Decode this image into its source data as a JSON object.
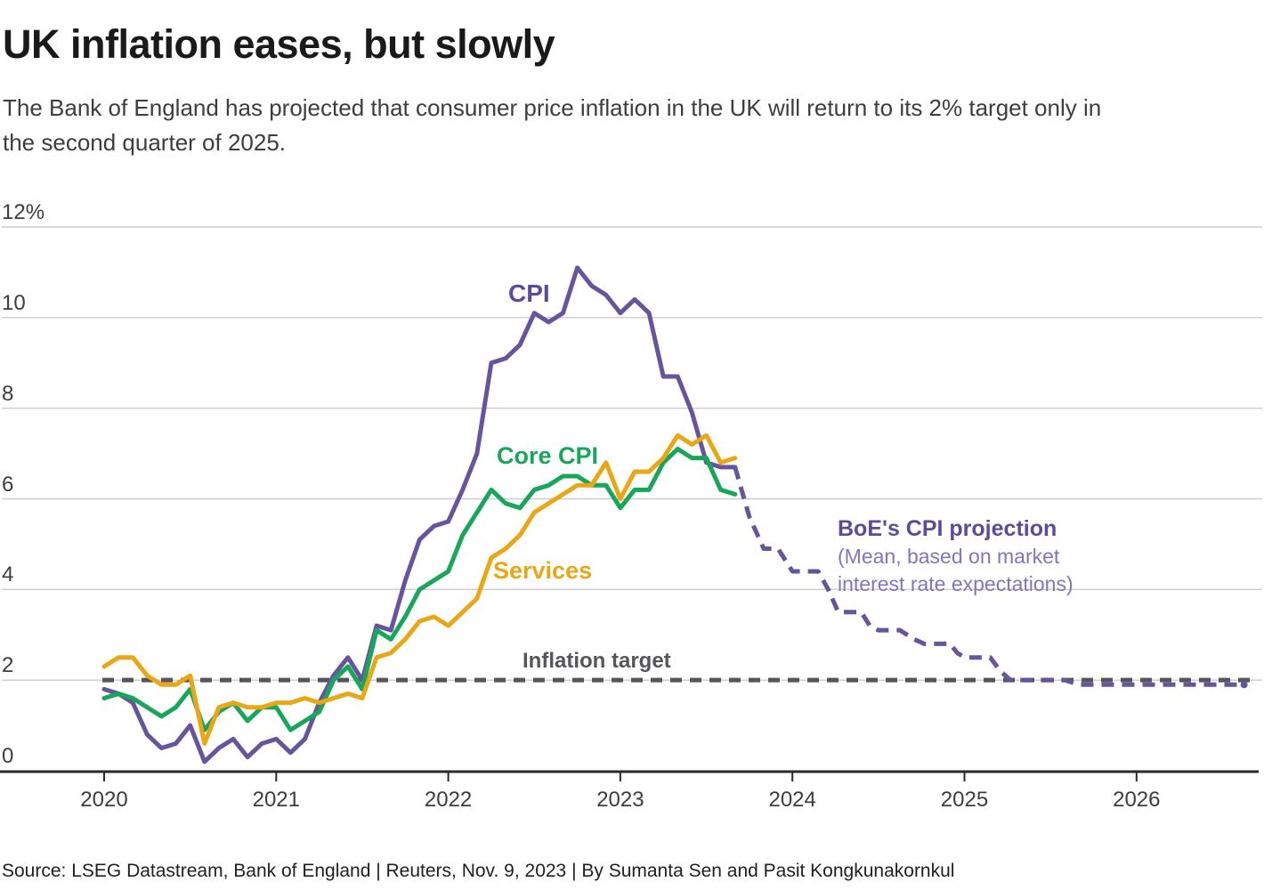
{
  "header": {
    "title": "UK inflation eases, but slowly",
    "subtitle_line1": "The Bank of England has projected that consumer price inflation in the UK will return to its 2% target only in",
    "subtitle_line2": "the second quarter of 2025."
  },
  "annotations": {
    "cpi": "CPI",
    "core_cpi": "Core CPI",
    "services": "Services",
    "inflation_target": "Inflation target",
    "boe_projection_title": "BoE's CPI projection",
    "boe_projection_sub1": "(Mean, based on market",
    "boe_projection_sub2": "interest rate expectations)"
  },
  "footer": {
    "source": "Source: LSEG Datastream, Bank of England | Reuters, Nov. 9, 2023 | By Sumanta Sen and Pasit Kongkunakornkul"
  },
  "colors": {
    "cpi": "#66549E",
    "core_cpi": "#17A65A",
    "services": "#E9A716",
    "target": "#55555A",
    "projection": "#66549E",
    "projection_label": "#5C4B9D",
    "projection_subtext": "#8375BD",
    "grid": "#CBCBD0",
    "axis": "#2A2A2A"
  },
  "chart_data": {
    "type": "line",
    "title": "UK inflation eases, but slowly",
    "unit": "percent, 12-month rate",
    "ylim": [
      0,
      12
    ],
    "y_ticks": [
      {
        "value": 12,
        "label": "12%"
      },
      {
        "value": 10,
        "label": "10"
      },
      {
        "value": 8,
        "label": "8"
      },
      {
        "value": 6,
        "label": "6"
      },
      {
        "value": 4,
        "label": "4"
      },
      {
        "value": 2,
        "label": "2"
      },
      {
        "value": 0,
        "label": "0"
      }
    ],
    "gridline_values": [
      12,
      10,
      8,
      6,
      4,
      2
    ],
    "x_axis": {
      "years": [
        "2020",
        "2021",
        "2022",
        "2023",
        "2024",
        "2025",
        "2026"
      ],
      "start_month": "2020-01",
      "frequency": "monthly"
    },
    "target": {
      "label": "Inflation target",
      "value": 2
    },
    "series": [
      {
        "name": "CPI",
        "color_key": "cpi",
        "style": "solid",
        "values": [
          1.8,
          1.7,
          1.5,
          0.8,
          0.5,
          0.6,
          1.0,
          0.2,
          0.5,
          0.7,
          0.3,
          0.6,
          0.7,
          0.4,
          0.7,
          1.5,
          2.1,
          2.5,
          2.0,
          3.2,
          3.1,
          4.2,
          5.1,
          5.4,
          5.5,
          6.2,
          7.0,
          9.0,
          9.1,
          9.4,
          10.1,
          9.9,
          10.1,
          11.1,
          10.7,
          10.5,
          10.1,
          10.4,
          10.1,
          8.7,
          8.7,
          7.9,
          6.8,
          6.7,
          6.7
        ]
      },
      {
        "name": "Core CPI",
        "color_key": "core_cpi",
        "style": "solid",
        "values": [
          1.6,
          1.7,
          1.6,
          1.4,
          1.2,
          1.4,
          1.8,
          0.9,
          1.3,
          1.5,
          1.1,
          1.4,
          1.4,
          0.9,
          1.1,
          1.3,
          2.0,
          2.3,
          1.8,
          3.1,
          2.9,
          3.4,
          4.0,
          4.2,
          4.4,
          5.2,
          5.7,
          6.2,
          5.9,
          5.8,
          6.2,
          6.3,
          6.5,
          6.5,
          6.3,
          6.3,
          5.8,
          6.2,
          6.2,
          6.8,
          7.1,
          6.9,
          6.9,
          6.2,
          6.1
        ]
      },
      {
        "name": "Services",
        "color_key": "services",
        "style": "solid",
        "values": [
          2.3,
          2.5,
          2.5,
          2.1,
          1.9,
          1.9,
          2.1,
          0.6,
          1.4,
          1.5,
          1.4,
          1.4,
          1.5,
          1.5,
          1.6,
          1.5,
          1.6,
          1.7,
          1.6,
          2.5,
          2.6,
          2.9,
          3.3,
          3.4,
          3.2,
          3.5,
          3.8,
          4.7,
          4.9,
          5.2,
          5.7,
          5.9,
          6.1,
          6.3,
          6.3,
          6.8,
          6.0,
          6.6,
          6.6,
          6.9,
          7.4,
          7.2,
          7.4,
          6.8,
          6.9
        ]
      }
    ],
    "projection": {
      "name": "BoE's CPI projection",
      "note": "(Mean, based on market interest rate expectations)",
      "color_key": "projection",
      "style": "dashed",
      "points_month_value": [
        [
          44,
          6.7
        ],
        [
          45,
          5.6
        ],
        [
          46,
          4.9
        ],
        [
          47,
          4.9
        ],
        [
          48,
          4.4
        ],
        [
          49.8,
          4.4
        ],
        [
          50.5,
          4.0
        ],
        [
          51.2,
          3.5
        ],
        [
          52.8,
          3.5
        ],
        [
          53.4,
          3.2
        ],
        [
          54,
          3.1
        ],
        [
          55.5,
          3.1
        ],
        [
          56.5,
          2.9
        ],
        [
          57.2,
          2.8
        ],
        [
          59,
          2.8
        ],
        [
          59.5,
          2.6
        ],
        [
          60,
          2.5
        ],
        [
          61.8,
          2.5
        ],
        [
          62.5,
          2.2
        ],
        [
          63.2,
          2.0
        ],
        [
          67,
          2.0
        ],
        [
          68,
          1.9
        ],
        [
          79.5,
          1.9
        ]
      ]
    }
  }
}
